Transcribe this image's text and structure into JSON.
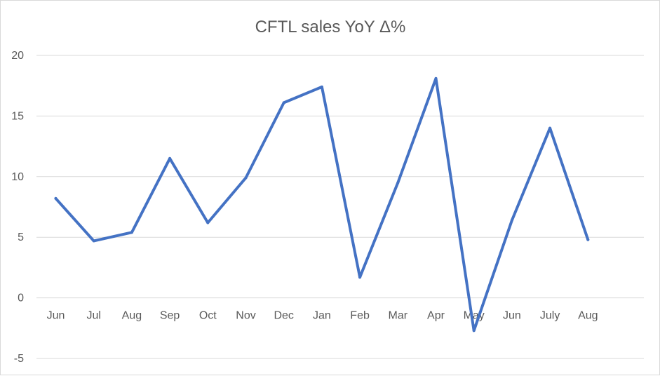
{
  "chart_data": {
    "type": "line",
    "title": "CFTL sales YoY Δ%",
    "xlabel": "",
    "ylabel": "",
    "categories": [
      "Jun",
      "Jul",
      "Aug",
      "Sep",
      "Oct",
      "Nov",
      "Dec",
      "Jan",
      "Feb",
      "Mar",
      "Apr",
      "May",
      "Jun",
      "July",
      "Aug"
    ],
    "series": [
      {
        "values": [
          8.2,
          4.7,
          5.4,
          11.5,
          6.2,
          9.9,
          16.1,
          17.4,
          1.7,
          9.5,
          18.1,
          -2.7,
          6.4,
          14.0,
          4.8
        ]
      }
    ],
    "ylim": [
      -5,
      20
    ],
    "yticks": [
      -5,
      0,
      5,
      10,
      15,
      20
    ],
    "grid": true,
    "legend": "none",
    "colors": {
      "line": "#4472C4",
      "grid": "#d9d9d9",
      "text": "#595959"
    }
  }
}
